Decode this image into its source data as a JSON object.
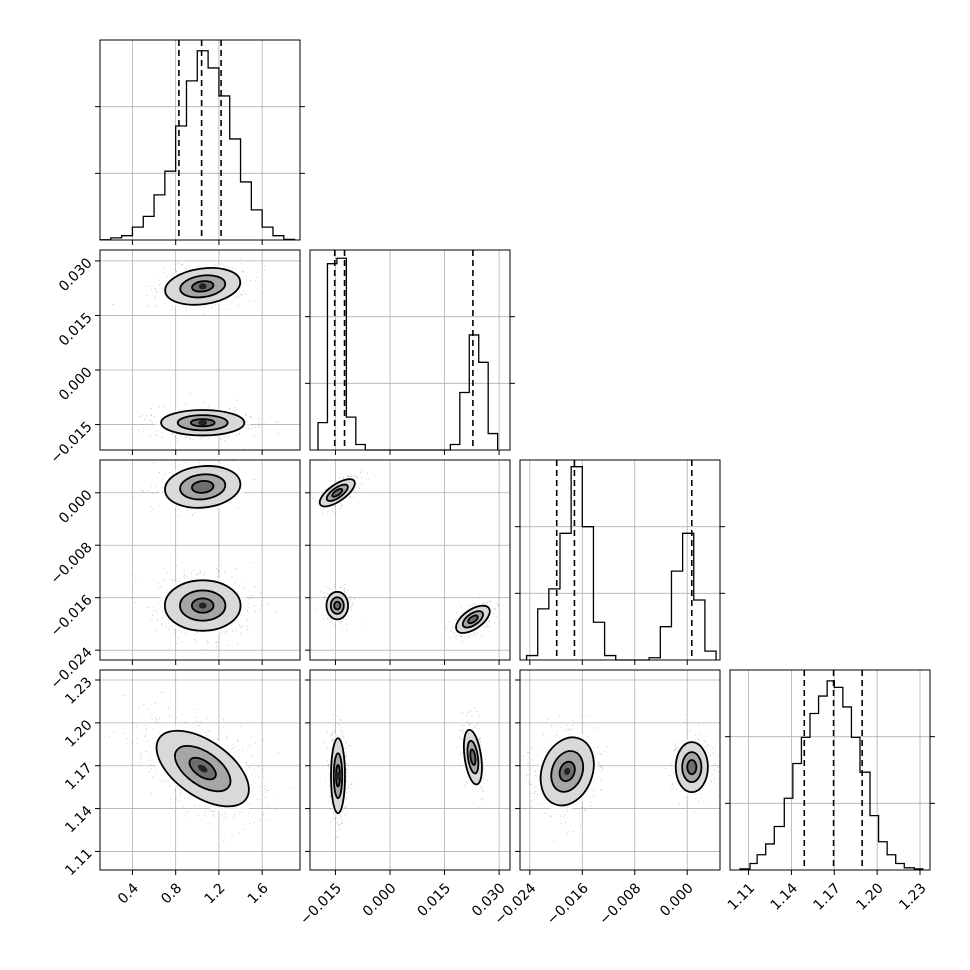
{
  "chart_data": {
    "type": "corner",
    "grid": true,
    "parameters": [
      {
        "range": [
          0.1,
          1.95
        ],
        "ticks": [
          0.4,
          0.8,
          1.2,
          1.6
        ],
        "tick_labels": [
          "0.4",
          "0.8",
          "1.2",
          "1.6"
        ],
        "quantiles": [
          0.83,
          1.04,
          1.22
        ],
        "histogram": {
          "bin_edges": [
            0.1,
            0.2,
            0.3,
            0.4,
            0.5,
            0.6,
            0.7,
            0.8,
            0.9,
            1.0,
            1.1,
            1.2,
            1.3,
            1.4,
            1.5,
            1.6,
            1.7,
            1.8,
            1.9
          ],
          "counts": [
            0.1,
            1,
            2,
            6,
            11,
            21,
            32,
            53,
            74,
            88,
            80,
            67,
            47,
            27,
            14,
            6,
            2,
            0.3
          ]
        },
        "hist_ylim": [
          0,
          93
        ]
      },
      {
        "range": [
          -0.022,
          0.033
        ],
        "ticks": [
          -0.015,
          0.0,
          0.015,
          0.03
        ],
        "tick_labels": [
          "−0.015",
          "0.000",
          "0.015",
          "0.030"
        ],
        "quantiles": [
          -0.0152,
          -0.0125,
          0.0228
        ],
        "histogram": {
          "bin_edges": [
            -0.0198,
            -0.0172,
            -0.0146,
            -0.012,
            -0.0094,
            -0.0068,
            -0.0042,
            -0.0016,
            0.001,
            0.0036,
            0.0062,
            0.0088,
            0.0114,
            0.014,
            0.0166,
            0.0192,
            0.0218,
            0.0244,
            0.027,
            0.0296
          ],
          "counts": [
            10,
            68,
            70,
            12,
            2,
            0,
            0,
            0,
            0,
            0,
            0,
            0,
            0,
            0,
            2,
            21,
            42,
            32,
            6
          ]
        },
        "hist_ylim": [
          0,
          73
        ]
      },
      {
        "range": [
          -0.0255,
          0.005
        ],
        "ticks": [
          -0.024,
          -0.016,
          -0.008,
          0.0
        ],
        "tick_labels": [
          "−0.024",
          "−0.016",
          "−0.008",
          "0.000"
        ],
        "quantiles": [
          -0.0199,
          -0.0172,
          0.0007
        ],
        "histogram": {
          "bin_edges": [
            -0.0245,
            -0.0228,
            -0.0211,
            -0.0194,
            -0.0177,
            -0.016,
            -0.0143,
            -0.0126,
            -0.0109,
            -0.0092,
            -0.0075,
            -0.0058,
            -0.0041,
            -0.0024,
            -0.0007,
            0.001,
            0.0027,
            0.0044
          ],
          "counts": [
            2,
            23,
            32,
            57,
            87,
            60,
            17,
            2,
            0,
            0,
            0,
            1,
            15,
            40,
            57,
            27,
            4
          ]
        },
        "hist_ylim": [
          0,
          90
        ]
      },
      {
        "range": [
          1.097,
          1.237
        ],
        "ticks": [
          1.11,
          1.14,
          1.17,
          1.2,
          1.23
        ],
        "tick_labels": [
          "1.11",
          "1.14",
          "1.17",
          "1.20",
          "1.23"
        ],
        "quantiles": [
          1.149,
          1.1695,
          1.1895
        ],
        "histogram": {
          "bin_edges": [
            1.104,
            1.111,
            1.116,
            1.122,
            1.128,
            1.135,
            1.141,
            1.147,
            1.153,
            1.159,
            1.165,
            1.17,
            1.176,
            1.182,
            1.188,
            1.195,
            1.201,
            1.207,
            1.213,
            1.219,
            1.226,
            1.232
          ],
          "counts": [
            0.5,
            3,
            7,
            12,
            20,
            33,
            49,
            61,
            72,
            80,
            87,
            84,
            75,
            61,
            45,
            25,
            13,
            7,
            3,
            1,
            0.5
          ]
        },
        "hist_ylim": [
          0,
          92
        ]
      }
    ],
    "pair_modes": [
      {
        "row": 1,
        "col": 0,
        "modes": [
          {
            "center": [
              1.05,
              0.023
            ],
            "sd": [
              0.2,
              0.0028
            ],
            "rot": 8,
            "weight": 0.5
          },
          {
            "center": [
              1.05,
              -0.0145
            ],
            "sd": [
              0.22,
              0.002
            ],
            "rot": 0,
            "weight": 0.5
          }
        ]
      },
      {
        "row": 2,
        "col": 0,
        "modes": [
          {
            "center": [
              1.05,
              0.0009
            ],
            "sd": [
              0.2,
              0.0018
            ],
            "rot": 6,
            "weight": 0.33
          },
          {
            "center": [
              1.05,
              -0.0172
            ],
            "sd": [
              0.2,
              0.0022
            ],
            "rot": 0,
            "weight": 0.67
          }
        ]
      },
      {
        "row": 2,
        "col": 1,
        "modes": [
          {
            "center": [
              -0.0145,
              0.0
            ],
            "sd": [
              0.0013,
              0.0018
            ],
            "rot": -55,
            "weight": 0.33
          },
          {
            "center": [
              -0.0145,
              -0.0172
            ],
            "sd": [
              0.0017,
              0.0012
            ],
            "rot": 0,
            "weight": 0.34
          },
          {
            "center": [
              0.0228,
              -0.0193
            ],
            "sd": [
              0.0015,
              0.0017
            ],
            "rot": -55,
            "weight": 0.33
          }
        ]
      },
      {
        "row": 3,
        "col": 0,
        "modes": [
          {
            "center": [
              1.05,
              1.168
            ],
            "sd": [
              0.28,
              0.011
            ],
            "rot": -35,
            "weight": 1.0
          }
        ]
      },
      {
        "row": 3,
        "col": 1,
        "modes": [
          {
            "center": [
              -0.0143,
              1.163
            ],
            "sd": [
              0.0011,
              0.015
            ],
            "rot": 0,
            "weight": 0.67
          },
          {
            "center": [
              0.0228,
              1.176
            ],
            "sd": [
              0.0013,
              0.011
            ],
            "rot": 8,
            "weight": 0.33
          }
        ]
      },
      {
        "row": 3,
        "col": 2,
        "modes": [
          {
            "center": [
              -0.0183,
              1.166
            ],
            "sd": [
              0.0022,
              0.014
            ],
            "rot": -20,
            "weight": 0.67
          },
          {
            "center": [
              0.0007,
              1.169
            ],
            "sd": [
              0.0014,
              0.01
            ],
            "rot": 0,
            "weight": 0.33
          }
        ]
      }
    ]
  }
}
